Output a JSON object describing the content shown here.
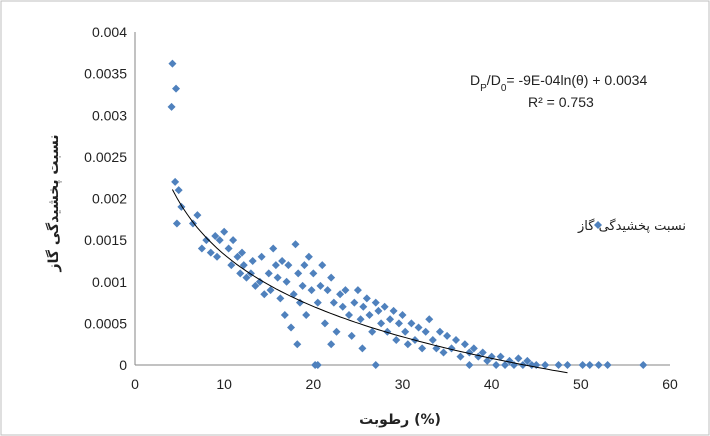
{
  "chart_data": {
    "type": "scatter",
    "xlabel": "رطوبت (%)",
    "ylabel": "نسبت پخشیدگی گاز",
    "xlim": [
      0,
      60
    ],
    "ylim": [
      0,
      0.004
    ],
    "x_ticks": [
      "0",
      "10",
      "20",
      "30",
      "40",
      "50",
      "60"
    ],
    "y_ticks": [
      "0",
      "0.0005",
      "0.001",
      "0.0015",
      "0.002",
      "0.0025",
      "0.003",
      "0.0035",
      "0.004"
    ],
    "grid": false,
    "legend_position": "right",
    "series": [
      {
        "name": "نسبت پخشیدگی گاز",
        "color": "#4f81bd",
        "marker": "diamond",
        "points": [
          [
            4.2,
            0.00362
          ],
          [
            4.6,
            0.00332
          ],
          [
            4.1,
            0.0031
          ],
          [
            4.5,
            0.0022
          ],
          [
            4.9,
            0.0021
          ],
          [
            4.7,
            0.0017
          ],
          [
            5.2,
            0.0019
          ],
          [
            6.5,
            0.0017
          ],
          [
            7.0,
            0.0018
          ],
          [
            7.5,
            0.0014
          ],
          [
            8.0,
            0.0015
          ],
          [
            8.5,
            0.00135
          ],
          [
            9.0,
            0.00155
          ],
          [
            9.5,
            0.0015
          ],
          [
            9.2,
            0.0013
          ],
          [
            10.0,
            0.0016
          ],
          [
            10.5,
            0.0014
          ],
          [
            10.8,
            0.0012
          ],
          [
            11.0,
            0.0015
          ],
          [
            11.5,
            0.0013
          ],
          [
            11.8,
            0.0011
          ],
          [
            12.0,
            0.00135
          ],
          [
            12.5,
            0.00105
          ],
          [
            12.2,
            0.0012
          ],
          [
            13.0,
            0.0011
          ],
          [
            13.5,
            0.00095
          ],
          [
            13.2,
            0.00125
          ],
          [
            14.0,
            0.001
          ],
          [
            14.5,
            0.00085
          ],
          [
            14.2,
            0.0013
          ],
          [
            15.0,
            0.0011
          ],
          [
            15.2,
            0.0009
          ],
          [
            15.5,
            0.0014
          ],
          [
            15.8,
            0.0012
          ],
          [
            16.0,
            0.00105
          ],
          [
            16.3,
            0.0008
          ],
          [
            16.5,
            0.00125
          ],
          [
            16.8,
            0.0006
          ],
          [
            17.0,
            0.001
          ],
          [
            17.2,
            0.0012
          ],
          [
            17.5,
            0.00045
          ],
          [
            17.8,
            0.00085
          ],
          [
            18.0,
            0.00145
          ],
          [
            18.2,
            0.00025
          ],
          [
            18.3,
            0.0011
          ],
          [
            18.5,
            0.00075
          ],
          [
            18.8,
            0.00095
          ],
          [
            19.0,
            0.0012
          ],
          [
            19.2,
            0.0006
          ],
          [
            19.5,
            0.0013
          ],
          [
            19.8,
            0.0009
          ],
          [
            20.0,
            0.0011
          ],
          [
            20.2,
            0.0
          ],
          [
            20.5,
            0.00075
          ],
          [
            20.8,
            0.00095
          ],
          [
            21.0,
            0.0012
          ],
          [
            21.3,
            0.0005
          ],
          [
            21.6,
            0.0009
          ],
          [
            22.0,
            0.00105
          ],
          [
            22.3,
            0.00075
          ],
          [
            22.6,
            0.0004
          ],
          [
            23.0,
            0.00085
          ],
          [
            23.3,
            0.0007
          ],
          [
            23.6,
            0.0009
          ],
          [
            24.0,
            0.0006
          ],
          [
            24.3,
            0.00035
          ],
          [
            24.6,
            0.00075
          ],
          [
            25.0,
            0.0009
          ],
          [
            25.3,
            0.00055
          ],
          [
            25.6,
            0.0007
          ],
          [
            26.0,
            0.0008
          ],
          [
            26.3,
            0.0006
          ],
          [
            26.6,
            0.0004
          ],
          [
            27.0,
            0.00075
          ],
          [
            27.3,
            0.00065
          ],
          [
            27.6,
            0.0005
          ],
          [
            28.0,
            0.0007
          ],
          [
            28.3,
            0.0004
          ],
          [
            28.6,
            0.00055
          ],
          [
            29.0,
            0.00065
          ],
          [
            29.3,
            0.0003
          ],
          [
            29.6,
            0.0005
          ],
          [
            30.0,
            0.0006
          ],
          [
            30.3,
            0.0004
          ],
          [
            30.6,
            0.00025
          ],
          [
            31.0,
            0.0005
          ],
          [
            31.4,
            0.0003
          ],
          [
            31.8,
            0.00045
          ],
          [
            32.2,
            0.0002
          ],
          [
            32.6,
            0.0004
          ],
          [
            33.0,
            0.00055
          ],
          [
            33.4,
            0.0003
          ],
          [
            33.8,
            0.0002
          ],
          [
            34.2,
            0.0004
          ],
          [
            34.6,
            0.00015
          ],
          [
            35.0,
            0.00035
          ],
          [
            35.5,
            0.0002
          ],
          [
            36.0,
            0.0003
          ],
          [
            36.5,
            0.0001
          ],
          [
            37.0,
            0.00025
          ],
          [
            37.5,
            0.00015
          ],
          [
            38.0,
            0.0002
          ],
          [
            38.5,
            0.0001
          ],
          [
            39.0,
            0.00015
          ],
          [
            39.5,
            5e-05
          ],
          [
            40.0,
            0.0001
          ],
          [
            40.5,
            0.0
          ],
          [
            41.0,
            0.0001
          ],
          [
            41.5,
            0.0
          ],
          [
            42.0,
            5e-05
          ],
          [
            42.5,
            0.0
          ],
          [
            43.0,
            8e-05
          ],
          [
            43.5,
            0.0
          ],
          [
            44.0,
            5e-05
          ],
          [
            44.5,
            0.0
          ],
          [
            45.0,
            0.0
          ],
          [
            46.0,
            0.0
          ],
          [
            47.5,
            0.0
          ],
          [
            48.5,
            0.0
          ],
          [
            50.2,
            0.0
          ],
          [
            51.0,
            0.0
          ],
          [
            52.0,
            0.0
          ],
          [
            53.0,
            0.0
          ],
          [
            57.0,
            0.0
          ],
          [
            20.5,
            0.0
          ],
          [
            27.0,
            0.0
          ],
          [
            37.5,
            0.0
          ],
          [
            22.0,
            0.00025
          ],
          [
            25.5,
            0.0002
          ]
        ]
      }
    ],
    "trendline": {
      "type": "logarithmic",
      "a": -0.0009,
      "b": 0.0034,
      "x_range": [
        4.2,
        48.5
      ],
      "color": "#000000"
    },
    "annotations": {
      "equation": "DP/D0= -9E-04ln(θ) + 0.0034",
      "equation_parts": {
        "D": "D",
        "sub_p": "P",
        "slash": "/",
        "sub_0": "0",
        "rhs": "= -9E-04ln(θ) + 0.0034"
      },
      "r2": "R² = 0.753"
    }
  }
}
